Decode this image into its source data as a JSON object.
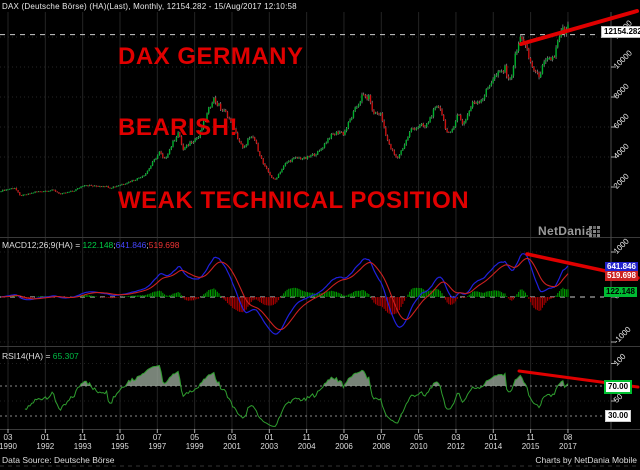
{
  "title": "DAX (Deutsche Börse) (HA)(Last), Monthly, 12154.282 - 15/Aug/2017 12:10:58",
  "annotations": {
    "line1": "DAX GERMANY",
    "line2": "BEARISH!",
    "line3": "WEAK TECHNICAL POSITION",
    "trendlines": {
      "main": [
        521,
        44,
        637,
        11
      ],
      "macd": [
        527,
        254,
        638,
        278
      ],
      "rsi": [
        519,
        371,
        638,
        387
      ]
    }
  },
  "watermark": {
    "text": "NetDania"
  },
  "main_panel": {
    "current_price_label": "12154.282"
  },
  "macd_panel": {
    "label_prefix": "MACD12;26;9(HA) = ",
    "hist_value": "122.148",
    "sep1": ";",
    "macd_value": "641.846",
    "sep2": ";",
    "signal_value": "519.698",
    "box_macd": "641.846",
    "box_signal": "519.698",
    "box_hist": "122.148"
  },
  "rsi_panel": {
    "label_prefix": "RSI14(HA) = ",
    "value": "65.307",
    "box_70": "70.00",
    "box_30": "30.00"
  },
  "footer": {
    "left": "Data Source: Deutsche Börse",
    "right": "Charts by NetDania Mobile"
  },
  "colors": {
    "annotation_red": "#e00000",
    "candle_up": "#00b22d",
    "candle_down": "#cc1111",
    "wick": "#999999",
    "macd_line": "#2020dd",
    "signal_line": "#cc2020",
    "hist_up": "#009900",
    "hist_down": "#aa0000",
    "rsi_line": "#2f9e2f",
    "rsi_fill": "#96a496",
    "grid": "#242424",
    "axis": "#4a4a4a"
  },
  "chart_data": {
    "type": "candlestick",
    "instrument": "DAX (Deutsche Börse)",
    "style": "Heikin-Ashi",
    "timeframe": "Monthly",
    "last_price": 12154.282,
    "last_update": "15/Aug/2017 12:10:58",
    "price_axis_ticks": [
      12000,
      10000,
      8000,
      6000,
      4000,
      2000
    ],
    "price_keypoints": [
      [
        1989.83,
        1750
      ],
      [
        1990.5,
        1950
      ],
      [
        1990.75,
        1420
      ],
      [
        1991.1,
        1500
      ],
      [
        1991.5,
        1670
      ],
      [
        1992.4,
        1790
      ],
      [
        1992.75,
        1520
      ],
      [
        1993.4,
        1750
      ],
      [
        1993.9,
        2150
      ],
      [
        1994.4,
        2050
      ],
      [
        1994.9,
        2080
      ],
      [
        1995.2,
        1950
      ],
      [
        1995.9,
        2250
      ],
      [
        1996.5,
        2550
      ],
      [
        1996.9,
        2880
      ],
      [
        1997.6,
        4350
      ],
      [
        1997.8,
        3750
      ],
      [
        1998.5,
        5650
      ],
      [
        1998.75,
        4450
      ],
      [
        1999.1,
        5000
      ],
      [
        1999.5,
        5350
      ],
      [
        1999.95,
        6950
      ],
      [
        2000.2,
        7950
      ],
      [
        2000.6,
        7200
      ],
      [
        2000.9,
        6850
      ],
      [
        2001.1,
        6200
      ],
      [
        2001.7,
        4450
      ],
      [
        2001.9,
        5150
      ],
      [
        2002.2,
        5300
      ],
      [
        2002.7,
        3400
      ],
      [
        2003.2,
        2420
      ],
      [
        2003.8,
        3650
      ],
      [
        2004.3,
        3950
      ],
      [
        2004.7,
        3880
      ],
      [
        2005.4,
        4350
      ],
      [
        2005.9,
        5350
      ],
      [
        2006.4,
        5700
      ],
      [
        2006.6,
        5550
      ],
      [
        2007.0,
        6700
      ],
      [
        2007.5,
        8050
      ],
      [
        2007.9,
        7900
      ],
      [
        2008.0,
        6950
      ],
      [
        2008.4,
        6900
      ],
      [
        2008.8,
        4850
      ],
      [
        2009.2,
        3850
      ],
      [
        2009.6,
        4900
      ],
      [
        2009.9,
        5850
      ],
      [
        2010.4,
        6100
      ],
      [
        2010.6,
        5950
      ],
      [
        2010.95,
        6950
      ],
      [
        2011.3,
        7450
      ],
      [
        2011.65,
        5650
      ],
      [
        2011.8,
        5450
      ],
      [
        2012.2,
        6900
      ],
      [
        2012.45,
        6150
      ],
      [
        2012.9,
        7550
      ],
      [
        2013.4,
        7900
      ],
      [
        2013.9,
        9250
      ],
      [
        2014.5,
        9850
      ],
      [
        2014.75,
        9050
      ],
      [
        2015.0,
        10700
      ],
      [
        2015.3,
        12150
      ],
      [
        2015.75,
        10250
      ],
      [
        2016.1,
        9350
      ],
      [
        2016.45,
        10250
      ],
      [
        2016.9,
        10700
      ],
      [
        2017.1,
        11700
      ],
      [
        2017.3,
        12450
      ],
      [
        2017.45,
        12200
      ],
      [
        2017.58,
        12600
      ]
    ],
    "indicators": {
      "macd": {
        "params": [
          12,
          26,
          9
        ],
        "current": {
          "histogram": 122.148,
          "macd": 641.846,
          "signal": 519.698
        },
        "axis_ticks": [
          1000,
          0,
          -1000
        ]
      },
      "rsi": {
        "period": 14,
        "current": 65.307,
        "levels": [
          70,
          30
        ],
        "axis_ticks": [
          100,
          50
        ]
      }
    },
    "x_ticks": [
      {
        "month": "03",
        "year": "1990"
      },
      {
        "month": "01",
        "year": "1992"
      },
      {
        "month": "11",
        "year": "1993"
      },
      {
        "month": "10",
        "year": "1995"
      },
      {
        "month": "07",
        "year": "1997"
      },
      {
        "month": "05",
        "year": "1999"
      },
      {
        "month": "03",
        "year": "2001"
      },
      {
        "month": "01",
        "year": "2003"
      },
      {
        "month": "11",
        "year": "2004"
      },
      {
        "month": "09",
        "year": "2006"
      },
      {
        "month": "07",
        "year": "2008"
      },
      {
        "month": "05",
        "year": "2010"
      },
      {
        "month": "03",
        "year": "2012"
      },
      {
        "month": "01",
        "year": "2014"
      },
      {
        "month": "11",
        "year": "2015"
      },
      {
        "month": "08",
        "year": "2017"
      }
    ]
  }
}
